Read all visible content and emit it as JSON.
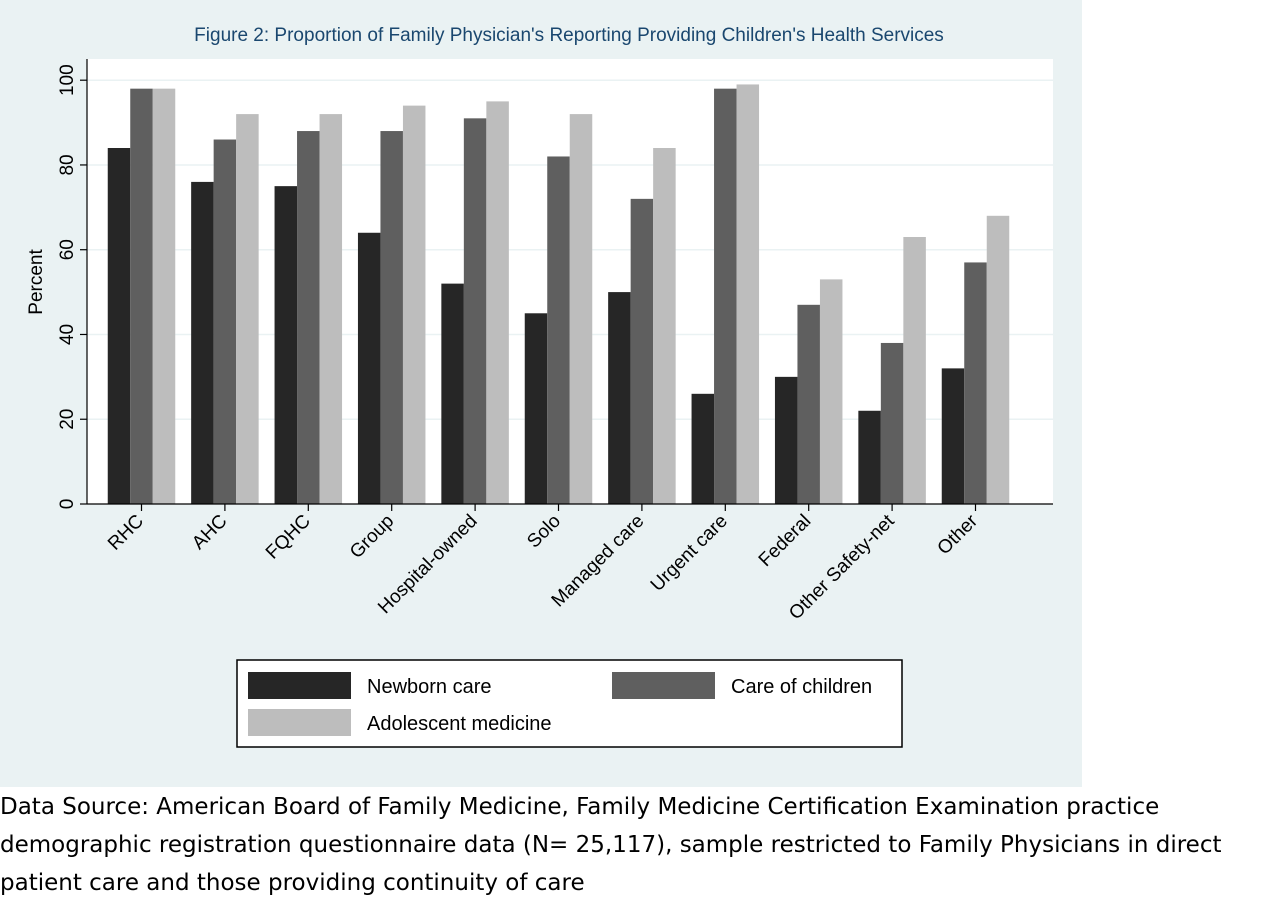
{
  "chart_data": {
    "type": "bar",
    "title": "Figure 2: Proportion of Family Physician's Reporting Providing Children's Health Services",
    "xlabel": "",
    "ylabel": "Percent",
    "ylim": [
      0,
      105
    ],
    "yticks": [
      "0",
      "20",
      "40",
      "60",
      "80",
      "100"
    ],
    "grid": true,
    "legend_position": "bottom",
    "categories": [
      "RHC",
      "AHC",
      "FQHC",
      "Group",
      "Hospital-owned",
      "Solo",
      "Managed care",
      "Urgent care",
      "Federal",
      "Other Safety-net",
      "Other"
    ],
    "series": [
      {
        "name": "Newborn care",
        "color": "#262626",
        "values": [
          84,
          76,
          75,
          64,
          52,
          45,
          50,
          26,
          30,
          22,
          32
        ]
      },
      {
        "name": "Care of children",
        "color": "#5f5f5f",
        "values": [
          98,
          86,
          88,
          88,
          91,
          82,
          72,
          98,
          47,
          38,
          57
        ]
      },
      {
        "name": "Adolescent medicine",
        "color": "#bdbdbd",
        "values": [
          98,
          92,
          92,
          94,
          95,
          92,
          84,
          99,
          53,
          63,
          68
        ]
      }
    ]
  },
  "colors": {
    "figure_background": "#eaf2f3",
    "plot_background": "#ffffff",
    "gridline": "#eaf2f3"
  },
  "source_note": {
    "line1": "Data Source: American Board of Family Medicine, Family Medicine Certification Examination practice",
    "line2": "demographic registration questionnaire data (N= 25,117), sample restricted to Family Physicians in direct",
    "line3": "patient care and those providing continuity of care"
  }
}
